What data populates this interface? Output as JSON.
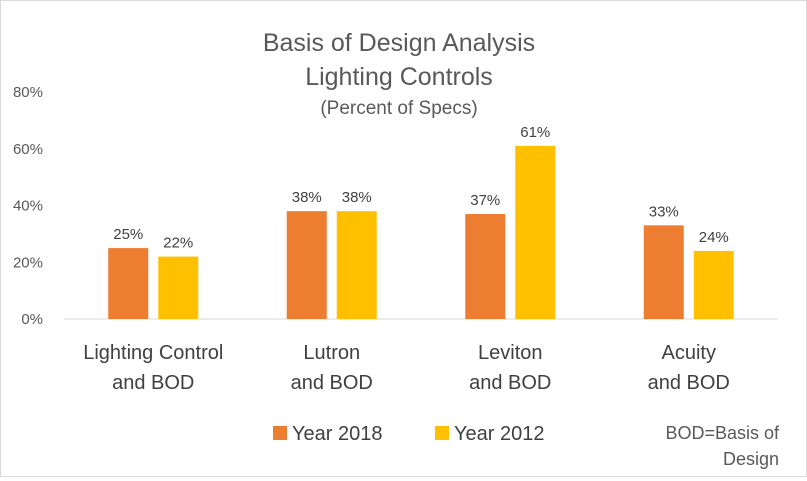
{
  "chart_data": {
    "type": "bar",
    "title_lines": [
      "Basis of Design Analysis",
      "Lighting Controls"
    ],
    "subtitle": "(Percent of Specs)",
    "categories": [
      [
        "Lighting Control",
        "and BOD"
      ],
      [
        "Lutron",
        "and BOD"
      ],
      [
        "Leviton",
        "and BOD"
      ],
      [
        "Acuity",
        "and BOD"
      ]
    ],
    "series": [
      {
        "name": "Year 2018",
        "color": "#ED7D31",
        "values": [
          25,
          38,
          37,
          33
        ],
        "labels": [
          "25%",
          "38%",
          "37%",
          "33%"
        ]
      },
      {
        "name": "Year 2012",
        "color": "#FFC000",
        "values": [
          22,
          38,
          61,
          24
        ],
        "labels": [
          "22%",
          "38%",
          "61%",
          "24%"
        ]
      }
    ],
    "ylim": [
      0,
      80
    ],
    "yticks": [
      0,
      20,
      40,
      60,
      80
    ],
    "ytick_labels": [
      "0%",
      "20%",
      "40%",
      "60%",
      "80%"
    ],
    "grid": false,
    "legend_position": "bottom",
    "annotation_lines": [
      "BOD=Basis of",
      "Design"
    ]
  }
}
